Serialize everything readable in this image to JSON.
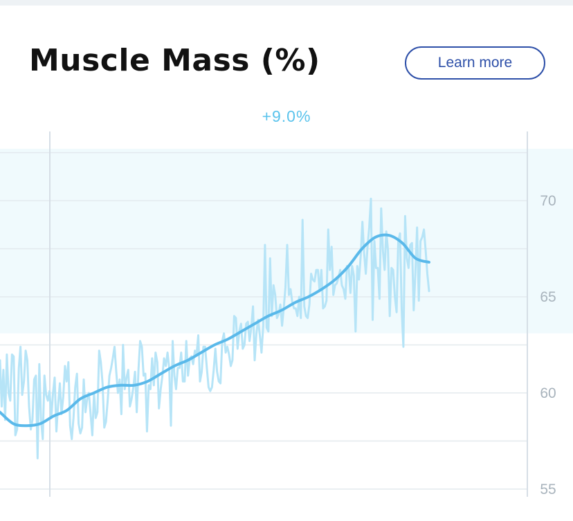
{
  "header": {
    "title": "Muscle Mass (%)",
    "learn_more_label": "Learn more"
  },
  "summary": {
    "change_label": "+9.0%"
  },
  "colors": {
    "accent": "#2d4fa8",
    "trend_line": "#5ab9ea",
    "raw_line": "#b6e4f7",
    "band": "#f0fafd",
    "change_text": "#5ac3ec",
    "tick_text": "#a8b3bc",
    "grid": "#e3e9ee"
  },
  "chart_data": {
    "type": "line",
    "title": "Muscle Mass (%)",
    "xlabel": "",
    "ylabel": "",
    "ylim": [
      54.6,
      73.6
    ],
    "yticks": [
      55,
      60,
      65,
      70
    ],
    "grid": true,
    "y_axis_position": "right",
    "highlight_band": [
      63.1,
      74.5
    ],
    "annotation": "+9.0%",
    "series": [
      {
        "role": "raw",
        "values": [
          61.7,
          59.3,
          61.2,
          58.6,
          62.0,
          60.0,
          59.6,
          62.0,
          61.9,
          57.8,
          58.1,
          61.3,
          62.4,
          59.9,
          60.6,
          62.2,
          61.7,
          59.3,
          58.1,
          58.6,
          60.7,
          60.9,
          56.6,
          61.5,
          58.6,
          57.6,
          60.9,
          59.9,
          59.6,
          60.1,
          58.7,
          60.0,
          60.8,
          58.0,
          59.4,
          60.5,
          58.9,
          59.8,
          61.4,
          60.6,
          61.6,
          58.3,
          57.6,
          58.7,
          60.3,
          61.0,
          58.4,
          57.9,
          58.2,
          60.7,
          59.0,
          59.7,
          60.0,
          58.9,
          57.8,
          60.0,
          58.7,
          59.0,
          62.2,
          61.6,
          60.5,
          58.2,
          58.5,
          59.6,
          60.9,
          61.3,
          61.8,
          62.4,
          61.1,
          60.0,
          60.7,
          58.9,
          62.5,
          60.2,
          60.8,
          61.2,
          59.3,
          59.7,
          60.3,
          61.1,
          59.0,
          61.2,
          62.7,
          62.4,
          60.9,
          61.0,
          58.0,
          60.4,
          60.2,
          61.8,
          60.4,
          62.1,
          61.6,
          59.2,
          60.2,
          60.9,
          61.8,
          61.4,
          62.1,
          61.3,
          58.3,
          62.7,
          60.9,
          60.2,
          61.3,
          61.3,
          62.1,
          60.6,
          60.6,
          62.7,
          60.9,
          61.8,
          61.9,
          61.5,
          62.2,
          62.0,
          63.0,
          60.6,
          61.1,
          62.4,
          62.4,
          61.3,
          60.3,
          60.1,
          60.3,
          61.2,
          62.3,
          61.1,
          60.6,
          60.5,
          62.7,
          63.1,
          62.1,
          62.4,
          62.0,
          61.4,
          61.7,
          64.0,
          63.9,
          62.3,
          63.2,
          63.6,
          62.3,
          62.5,
          63.6,
          63.7,
          62.7,
          63.4,
          64.5,
          61.7,
          63.1,
          63.8,
          63.0,
          62.1,
          63.5,
          67.7,
          63.4,
          63.2,
          67.0,
          64.0,
          65.6,
          65.1,
          63.9,
          64.1,
          64.6,
          63.5,
          64.4,
          65.5,
          67.7,
          65.1,
          65.4,
          64.7,
          64.4,
          64.4,
          64.0,
          65.0,
          63.9,
          69.0,
          64.5,
          64.0,
          63.9,
          64.6,
          66.2,
          65.9,
          65.8,
          66.4,
          66.4,
          65.3,
          66.4,
          64.4,
          64.5,
          64.8,
          68.5,
          66.4,
          67.6,
          65.1,
          65.6,
          65.7,
          66.0,
          66.4,
          65.6,
          65.4,
          64.9,
          66.6,
          66.5,
          65.2,
          66.6,
          66.1,
          63.2,
          66.6,
          65.9,
          67.1,
          68.9,
          67.3,
          66.2,
          67.6,
          68.6,
          70.1,
          63.8,
          67.9,
          66.5,
          66.5,
          64.9,
          69.6,
          67.4,
          66.4,
          68.4,
          67.4,
          64.0,
          66.5,
          66.4,
          65.0,
          64.2,
          67.9,
          68.3,
          64.3,
          62.4,
          69.2,
          67.0,
          66.5,
          67.7,
          67.8,
          64.3,
          66.2,
          68.6,
          64.8,
          67.9,
          68.1,
          68.5,
          67.4,
          66.2,
          65.3
        ]
      },
      {
        "role": "trend",
        "values": [
          59.0,
          58.4,
          58.3,
          58.4,
          58.8,
          59.1,
          59.7,
          60.0,
          60.3,
          60.4,
          60.4,
          60.6,
          61.0,
          61.4,
          61.7,
          62.1,
          62.5,
          62.8,
          63.2,
          63.6,
          64.0,
          64.3,
          64.7,
          65.0,
          65.4,
          65.9,
          66.6,
          67.5,
          68.1,
          68.2,
          67.8,
          67.0,
          66.8
        ]
      }
    ]
  }
}
